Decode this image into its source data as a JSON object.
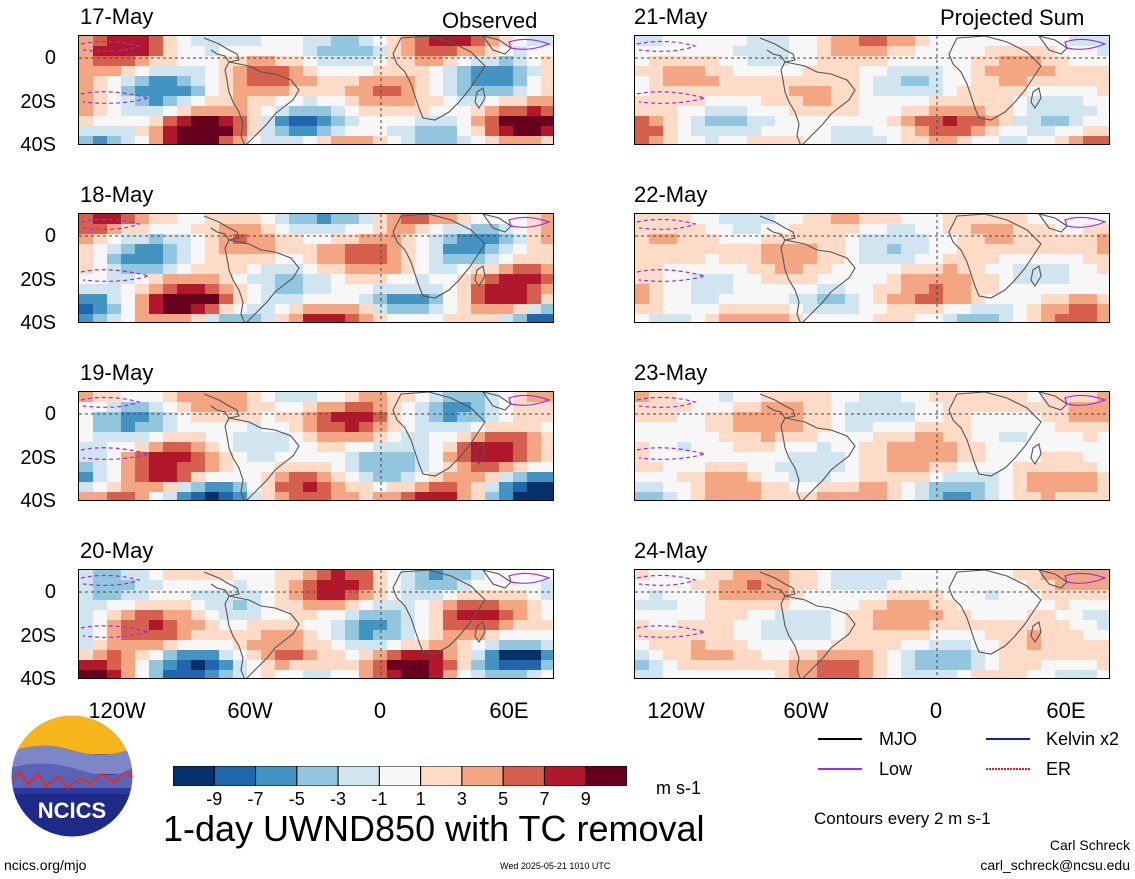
{
  "columns": {
    "observed": "Observed",
    "projected": "Projected Sum"
  },
  "panels": {
    "observed": [
      {
        "date": "17-May"
      },
      {
        "date": "18-May"
      },
      {
        "date": "19-May"
      },
      {
        "date": "20-May"
      }
    ],
    "projected": [
      {
        "date": "21-May"
      },
      {
        "date": "22-May"
      },
      {
        "date": "23-May"
      },
      {
        "date": "24-May"
      }
    ]
  },
  "axes": {
    "lat_labels": [
      "0",
      "20S",
      "40S"
    ],
    "lon_labels": [
      "120W",
      "60W",
      "0",
      "60E"
    ]
  },
  "colorbar": {
    "labels": [
      "-9",
      "-7",
      "-5",
      "-3",
      "-1",
      "1",
      "3",
      "5",
      "7",
      "9"
    ],
    "colors": [
      "#08306b",
      "#2166ac",
      "#4393c3",
      "#92c5de",
      "#d1e5f0",
      "#f7f7f7",
      "#fddbc7",
      "#f4a582",
      "#d6604d",
      "#b2182b",
      "#67001f"
    ],
    "units": "m s-1"
  },
  "legend": {
    "mjo": "MJO",
    "kelvin": "Kelvin x2",
    "low": "Low",
    "er": "ER",
    "contours_note": "Contours every 2 m s-1"
  },
  "main_title": "1-day UWND850 with TC removal",
  "logo": {
    "text": "NCICS"
  },
  "footer": {
    "left": "ncics.org/mjo",
    "center": "Wed 2025-05-21 1010 UTC",
    "author": "Carl Schreck",
    "email": "carl_schreck@ncsu.edu"
  }
}
